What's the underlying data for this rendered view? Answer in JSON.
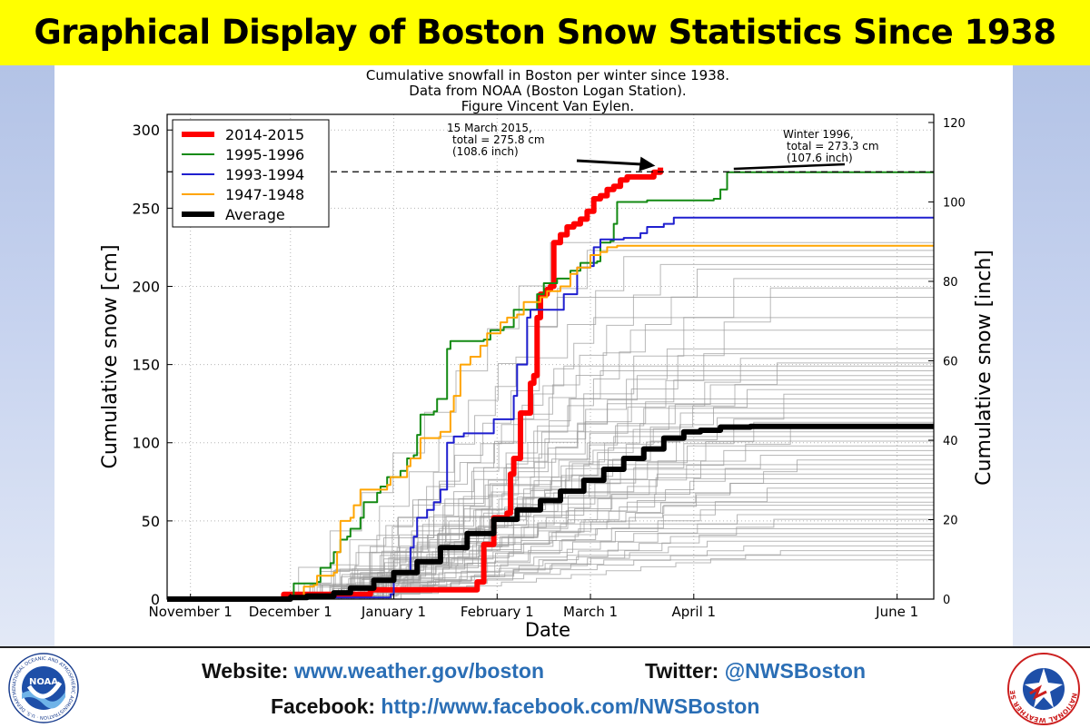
{
  "header": {
    "title": "Graphical Display of Boston Snow Statistics Since 1938"
  },
  "footer": {
    "website_label": "Website:",
    "website_url": "www.weather.gov/boston",
    "twitter_label": "Twitter:",
    "twitter_handle": "@NWSBoston",
    "facebook_label": "Facebook:",
    "facebook_url": "http://www.facebook.com/NWSBoston",
    "left_logo_text": "NOAA",
    "left_logo_ring": "NATIONAL OCEANIC AND ATMOSPHERIC ADMINISTRATION · U.S. DEPARTMENT OF COMMERCE",
    "right_logo_ring": "NATIONAL WEATHER SERVICE"
  },
  "colors": {
    "title_bg": "#ffff00",
    "link": "#2a6eb5",
    "s2014": "#ff0000",
    "s1995": "#138a13",
    "s1993": "#1f1fcf",
    "s1947": "#ffa500",
    "average": "#000000",
    "background_years": "#9a9a9a"
  },
  "chart_data": {
    "type": "line",
    "title_lines": [
      "Cumulative snowfall in Boston per winter since 1938.",
      "Data from NOAA (Boston Logan Station).",
      "Figure Vincent Van Eylen."
    ],
    "xlabel": "Date",
    "ylabel": "Cumulative snow [cm]",
    "ylabel_right": "Cumulative snow [inch]",
    "x_unit": "days after Oct 25",
    "xlim": [
      0,
      230
    ],
    "ylim": [
      0,
      310
    ],
    "y_ticks": [
      0,
      50,
      100,
      150,
      200,
      250,
      300
    ],
    "right_ticks": [
      0,
      20,
      40,
      60,
      80,
      100,
      120
    ],
    "x_ticks": [
      {
        "label": "November 1",
        "x": 7
      },
      {
        "label": "December 1",
        "x": 37
      },
      {
        "label": "January 1",
        "x": 68
      },
      {
        "label": "February 1",
        "x": 99
      },
      {
        "label": "March 1",
        "x": 127
      },
      {
        "label": "April 1",
        "x": 158
      },
      {
        "label": "June 1",
        "x": 219
      }
    ],
    "grid": true,
    "legend_position": "top-left",
    "series": [
      {
        "name": "2014-2015",
        "color_key": "s2014",
        "width": 6,
        "points": [
          [
            0,
            0
          ],
          [
            34,
            0
          ],
          [
            35,
            3
          ],
          [
            60,
            3
          ],
          [
            61,
            6
          ],
          [
            93,
            6
          ],
          [
            93,
            11
          ],
          [
            95,
            11
          ],
          [
            95,
            35
          ],
          [
            97,
            35
          ],
          [
            98,
            52
          ],
          [
            102,
            55
          ],
          [
            103,
            80
          ],
          [
            104,
            90
          ],
          [
            106,
            119
          ],
          [
            109,
            138
          ],
          [
            110,
            143
          ],
          [
            111,
            173
          ],
          [
            111,
            180
          ],
          [
            112,
            195
          ],
          [
            114,
            198
          ],
          [
            115,
            200
          ],
          [
            116,
            228
          ],
          [
            118,
            233
          ],
          [
            120,
            238
          ],
          [
            122,
            240
          ],
          [
            124,
            243
          ],
          [
            126,
            248
          ],
          [
            128,
            256
          ],
          [
            130,
            258
          ],
          [
            132,
            262
          ],
          [
            134,
            264
          ],
          [
            136,
            268
          ],
          [
            138,
            270
          ],
          [
            146,
            270
          ],
          [
            146,
            273
          ],
          [
            148,
            276
          ]
        ]
      },
      {
        "name": "1995-1996",
        "color_key": "s1995",
        "width": 2,
        "points": [
          [
            0,
            0
          ],
          [
            37,
            0
          ],
          [
            38,
            10
          ],
          [
            45,
            11
          ],
          [
            46,
            20
          ],
          [
            49,
            23
          ],
          [
            50,
            30
          ],
          [
            52,
            38
          ],
          [
            54,
            40
          ],
          [
            55,
            45
          ],
          [
            58,
            52
          ],
          [
            59,
            62
          ],
          [
            63,
            68
          ],
          [
            64,
            72
          ],
          [
            66,
            78
          ],
          [
            70,
            82
          ],
          [
            72,
            90
          ],
          [
            74,
            92
          ],
          [
            75,
            105
          ],
          [
            76,
            118
          ],
          [
            80,
            120
          ],
          [
            81,
            128
          ],
          [
            84,
            160
          ],
          [
            85,
            165
          ],
          [
            95,
            166
          ],
          [
            97,
            172
          ],
          [
            101,
            174
          ],
          [
            104,
            185
          ],
          [
            111,
            195
          ],
          [
            113,
            202
          ],
          [
            117,
            205
          ],
          [
            121,
            210
          ],
          [
            124,
            215
          ],
          [
            129,
            216
          ],
          [
            130,
            228
          ],
          [
            133,
            229
          ],
          [
            134,
            240
          ],
          [
            135,
            254
          ],
          [
            144,
            255
          ],
          [
            164,
            256
          ],
          [
            166,
            262
          ],
          [
            168,
            273
          ],
          [
            230,
            273
          ]
        ]
      },
      {
        "name": "1993-1994",
        "color_key": "s1993",
        "width": 2,
        "points": [
          [
            0,
            0
          ],
          [
            37,
            0
          ],
          [
            38,
            1
          ],
          [
            67,
            3
          ],
          [
            68,
            16
          ],
          [
            72,
            17
          ],
          [
            73,
            33
          ],
          [
            74,
            40
          ],
          [
            75,
            52
          ],
          [
            78,
            57
          ],
          [
            80,
            62
          ],
          [
            82,
            70
          ],
          [
            84,
            100
          ],
          [
            86,
            104
          ],
          [
            89,
            106
          ],
          [
            96,
            106
          ],
          [
            98,
            115
          ],
          [
            104,
            130
          ],
          [
            105,
            150
          ],
          [
            108,
            180
          ],
          [
            109,
            185
          ],
          [
            117,
            185
          ],
          [
            119,
            195
          ],
          [
            123,
            212
          ],
          [
            127,
            213
          ],
          [
            128,
            225
          ],
          [
            130,
            230
          ],
          [
            137,
            231
          ],
          [
            142,
            234
          ],
          [
            144,
            238
          ],
          [
            149,
            240
          ],
          [
            152,
            244
          ],
          [
            230,
            244
          ]
        ]
      },
      {
        "name": "1947-1948",
        "color_key": "s1947",
        "width": 2,
        "points": [
          [
            0,
            0
          ],
          [
            37,
            0
          ],
          [
            38,
            2
          ],
          [
            41,
            8
          ],
          [
            44,
            9
          ],
          [
            45,
            15
          ],
          [
            50,
            17
          ],
          [
            51,
            30
          ],
          [
            52,
            50
          ],
          [
            55,
            52
          ],
          [
            56,
            60
          ],
          [
            58,
            70
          ],
          [
            66,
            73
          ],
          [
            67,
            78
          ],
          [
            72,
            85
          ],
          [
            73,
            90
          ],
          [
            76,
            103
          ],
          [
            82,
            107
          ],
          [
            85,
            120
          ],
          [
            86,
            130
          ],
          [
            88,
            150
          ],
          [
            91,
            155
          ],
          [
            94,
            162
          ],
          [
            96,
            170
          ],
          [
            100,
            177
          ],
          [
            102,
            180
          ],
          [
            105,
            182
          ],
          [
            107,
            190
          ],
          [
            112,
            193
          ],
          [
            114,
            197
          ],
          [
            118,
            200
          ],
          [
            121,
            208
          ],
          [
            123,
            212
          ],
          [
            127,
            220
          ],
          [
            130,
            222
          ],
          [
            132,
            225
          ],
          [
            135,
            226
          ],
          [
            230,
            226
          ]
        ]
      },
      {
        "name": "Average",
        "color_key": "average",
        "width": 6,
        "points": [
          [
            0,
            0
          ],
          [
            33,
            0
          ],
          [
            37,
            1
          ],
          [
            42,
            2
          ],
          [
            50,
            4
          ],
          [
            55,
            7
          ],
          [
            62,
            12
          ],
          [
            68,
            17
          ],
          [
            75,
            24
          ],
          [
            82,
            33
          ],
          [
            90,
            42
          ],
          [
            98,
            51
          ],
          [
            105,
            57
          ],
          [
            112,
            63
          ],
          [
            118,
            69
          ],
          [
            125,
            76
          ],
          [
            131,
            83
          ],
          [
            137,
            90
          ],
          [
            143,
            96
          ],
          [
            149,
            103
          ],
          [
            155,
            107
          ],
          [
            160,
            108
          ],
          [
            166,
            110
          ],
          [
            175,
            110.5
          ],
          [
            230,
            110.5
          ]
        ]
      }
    ],
    "background_finals": [
      228,
      223,
      219,
      214,
      211,
      205,
      199,
      193,
      180,
      172,
      160,
      157,
      154,
      151,
      149,
      146,
      143,
      140,
      137,
      134,
      131,
      128,
      125,
      122,
      119,
      116,
      113,
      110,
      107,
      104,
      101,
      98,
      95,
      92,
      89,
      86,
      83,
      80,
      77,
      74,
      71,
      68,
      65,
      62,
      60,
      57,
      54,
      51,
      48,
      45,
      42,
      40,
      37,
      34,
      31,
      28,
      25
    ],
    "reference_line": {
      "y": 273.3,
      "style": "dashed"
    },
    "annotations": [
      {
        "lines": [
          "15 March 2015,",
          "total = 275.8 cm",
          "(108.6 inch)"
        ],
        "arrow_to": [
          147,
          276
        ]
      },
      {
        "lines": [
          "Winter 1996,",
          "total = 273.3 cm",
          "(107.6 inch)"
        ],
        "arrow_to": [
          170,
          274
        ]
      }
    ]
  }
}
